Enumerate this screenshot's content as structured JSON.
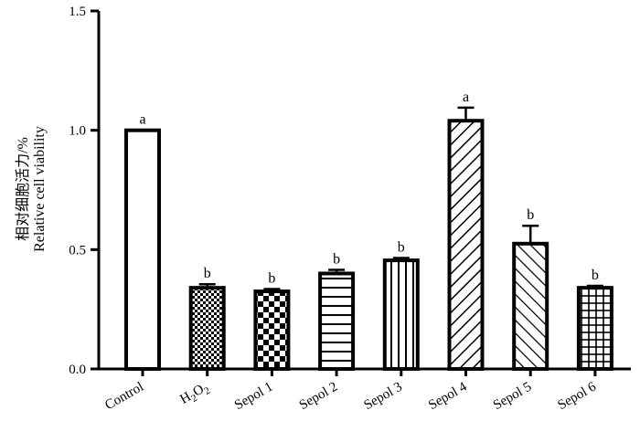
{
  "chart_data": {
    "type": "bar",
    "ylabel_cn": "相对细胞活力/%",
    "ylabel": "Relative cell viability",
    "ylim": [
      0,
      1.5
    ],
    "yticks": [
      "0.0",
      "0.5",
      "1.0",
      "1.5"
    ],
    "ytick_values": [
      0,
      0.5,
      1.0,
      1.5
    ],
    "grid": false,
    "categories": [
      "Control",
      "H2O2",
      "Sepol 1",
      "Sepol 2",
      "Sepol 3",
      "Sepol 4",
      "Sepol 5",
      "Sepol 6"
    ],
    "values": [
      1.0,
      0.34,
      0.325,
      0.4,
      0.455,
      1.04,
      0.525,
      0.34
    ],
    "errors": [
      0.0,
      0.015,
      0.01,
      0.015,
      0.01,
      0.055,
      0.075,
      0.008
    ],
    "significance": [
      "a",
      "b",
      "b",
      "b",
      "b",
      "a",
      "b",
      "b"
    ],
    "patterns": [
      "blank",
      "small-checker",
      "large-checker",
      "horizontal-lines",
      "vertical-lines",
      "diagonal-up",
      "diagonal-down",
      "grid"
    ]
  }
}
